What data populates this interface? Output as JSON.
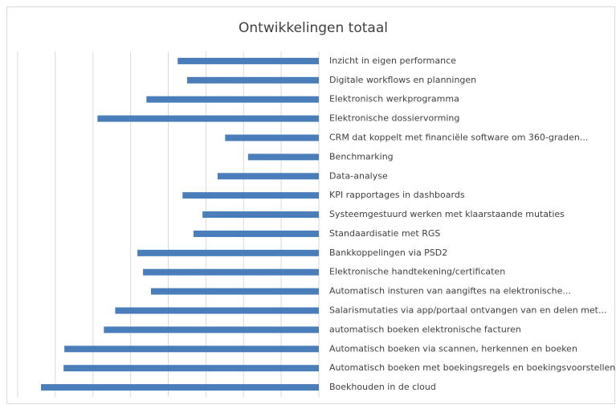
{
  "chart_data": {
    "type": "bar",
    "orientation": "horizontal",
    "reversed": true,
    "title": "Ontwikkelingen totaal",
    "categories": [
      "Inzicht in eigen performance",
      "Digitale workflows en planningen",
      "Elektronisch werkprogramma",
      "Elektronische dossiervorming",
      "CRM dat koppelt met financiële software om 360-graden...",
      "Benchmarking",
      "Data-analyse",
      "KPI rapportages in dashboards",
      "Systeemgestuurd werken met klaarstaande mutaties",
      "Standaardisatie met RGS",
      "Bankkoppelingen via PSD2",
      "Elektronische handtekening/certificaten",
      "Automatisch insturen van aangiftes na elektronische...",
      "Salarismutaties via app/portaal ontvangen van en delen met...",
      "automatisch boeken elektronische facturen",
      "Automatisch boeken via scannen, herkennen en boeken",
      "Automatisch boeken met boekingsregels en boekingsvoorstellen",
      "Boekhouden in de cloud"
    ],
    "values": [
      3.75,
      3.5,
      4.58,
      5.88,
      2.49,
      1.88,
      2.69,
      3.62,
      3.09,
      3.33,
      4.82,
      4.67,
      4.46,
      5.41,
      5.71,
      6.76,
      6.78,
      7.38
    ],
    "color": "#4a7ebb",
    "xlim": [
      0,
      8
    ],
    "xticks": [
      0,
      1,
      2,
      3,
      4,
      5,
      6,
      7,
      8
    ],
    "grid": true
  }
}
